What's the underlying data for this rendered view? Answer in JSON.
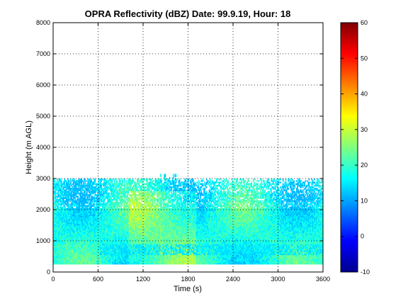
{
  "chart_data": {
    "type": "heatmap",
    "title": "OPRA Reflectivity (dBZ)  Date: 99.9.19, Hour: 18",
    "xlabel": "Time (s)",
    "ylabel": "Height (m AGL)",
    "xlim": [
      0,
      3600
    ],
    "ylim": [
      0,
      8000
    ],
    "xticks": [
      "0",
      "600",
      "1200",
      "1800",
      "2400",
      "3000",
      "3600"
    ],
    "yticks": [
      "0",
      "1000",
      "2000",
      "3000",
      "4000",
      "5000",
      "6000",
      "7000",
      "8000"
    ],
    "grid": true,
    "colorbar": {
      "range": [
        -10,
        60
      ],
      "ticks": [
        "-10",
        "0",
        "10",
        "20",
        "30",
        "40",
        "50",
        "60"
      ],
      "colormap": "jet"
    },
    "echo_region": {
      "height_range_m": [
        250,
        3000
      ],
      "max_height_m": 3150,
      "typical_dbz": [
        15,
        30
      ],
      "peak_dbz": 31,
      "weak_band_height_m": [
        550,
        850
      ],
      "weak_band_dbz": 13
    }
  }
}
